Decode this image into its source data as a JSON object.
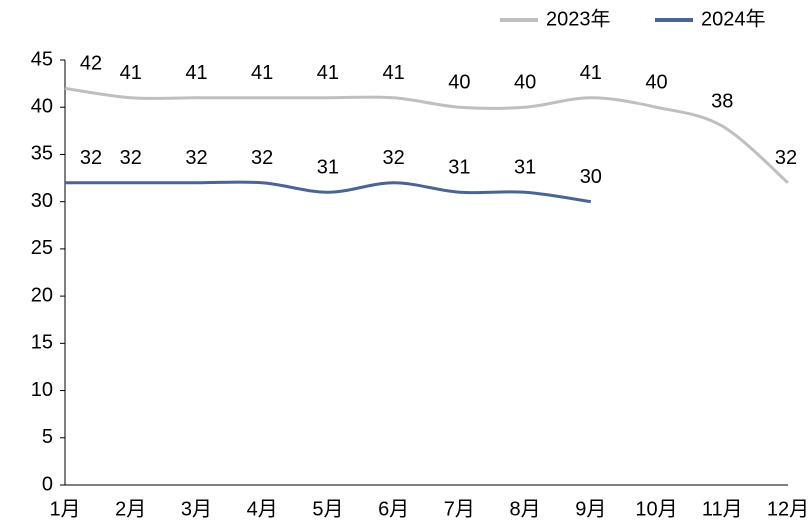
{
  "chart_data": {
    "type": "line",
    "categories": [
      "1月",
      "2月",
      "3月",
      "4月",
      "5月",
      "6月",
      "7月",
      "8月",
      "9月",
      "10月",
      "11月",
      "12月"
    ],
    "series": [
      {
        "name": "2023年",
        "color": "#bfbfbf",
        "values": [
          42,
          41,
          41,
          41,
          41,
          41,
          40,
          40,
          41,
          40,
          38,
          32
        ]
      },
      {
        "name": "2024年",
        "color": "#4a6494",
        "values": [
          32,
          32,
          32,
          32,
          31,
          32,
          31,
          31,
          30,
          null,
          null,
          null
        ]
      }
    ],
    "ylim": [
      0,
      45
    ],
    "yticks": [
      0,
      5,
      10,
      15,
      20,
      25,
      30,
      35,
      40,
      45
    ],
    "legend": "top-right",
    "smooth": true
  }
}
